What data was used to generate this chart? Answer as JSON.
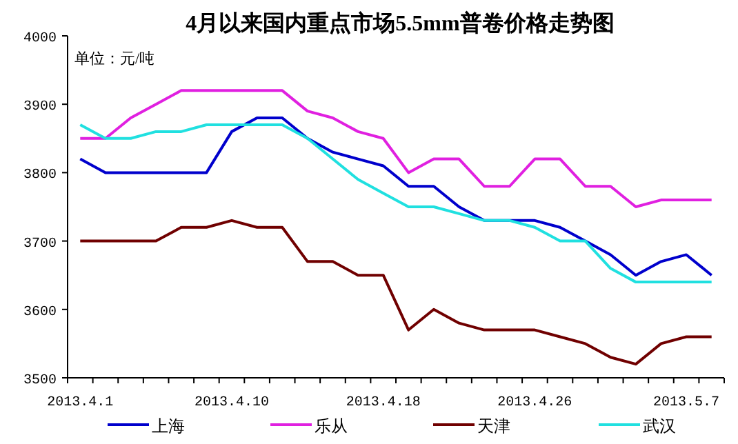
{
  "chart_data": {
    "type": "line",
    "title": "4月以来国内重点市场5.5mm普卷价格走势图",
    "annotations": [
      "单位：元/吨"
    ],
    "categories": [
      "2013.4.1",
      null,
      null,
      null,
      null,
      null,
      "2013.4.10",
      null,
      null,
      null,
      null,
      null,
      "2013.4.18",
      null,
      null,
      null,
      null,
      null,
      "2013.4.26",
      null,
      null,
      null,
      null,
      null,
      "2013.5.7",
      null
    ],
    "ylim": [
      3500,
      4000
    ],
    "yticks": [
      3500,
      3600,
      3700,
      3800,
      3900,
      4000
    ],
    "legend": "bottom",
    "grid": false,
    "marker": "none",
    "series": [
      {
        "name": "上海",
        "color": "#0000cc",
        "values": [
          3820,
          3800,
          3800,
          3800,
          3800,
          3800,
          3860,
          3880,
          3880,
          3850,
          3830,
          3820,
          3810,
          3780,
          3780,
          3750,
          3730,
          3730,
          3730,
          3720,
          3700,
          3680,
          3650,
          3670,
          3680,
          3650
        ]
      },
      {
        "name": "乐从",
        "color": "#e020e0",
        "values": [
          3850,
          3850,
          3880,
          3900,
          3920,
          3920,
          3920,
          3920,
          3920,
          3890,
          3880,
          3860,
          3850,
          3800,
          3820,
          3820,
          3780,
          3780,
          3820,
          3820,
          3780,
          3780,
          3750,
          3760,
          3760,
          3760
        ]
      },
      {
        "name": "天津",
        "color": "#700000",
        "values": [
          3700,
          3700,
          3700,
          3700,
          3720,
          3720,
          3730,
          3720,
          3720,
          3670,
          3670,
          3650,
          3650,
          3570,
          3600,
          3580,
          3570,
          3570,
          3570,
          3560,
          3550,
          3530,
          3520,
          3550,
          3560,
          3560
        ]
      },
      {
        "name": "武汉",
        "color": "#20e0e0",
        "values": [
          3870,
          3850,
          3850,
          3860,
          3860,
          3870,
          3870,
          3870,
          3870,
          3850,
          3820,
          3790,
          3770,
          3750,
          3750,
          3740,
          3730,
          3730,
          3720,
          3700,
          3700,
          3660,
          3640,
          3640,
          3640,
          3640
        ]
      }
    ]
  }
}
